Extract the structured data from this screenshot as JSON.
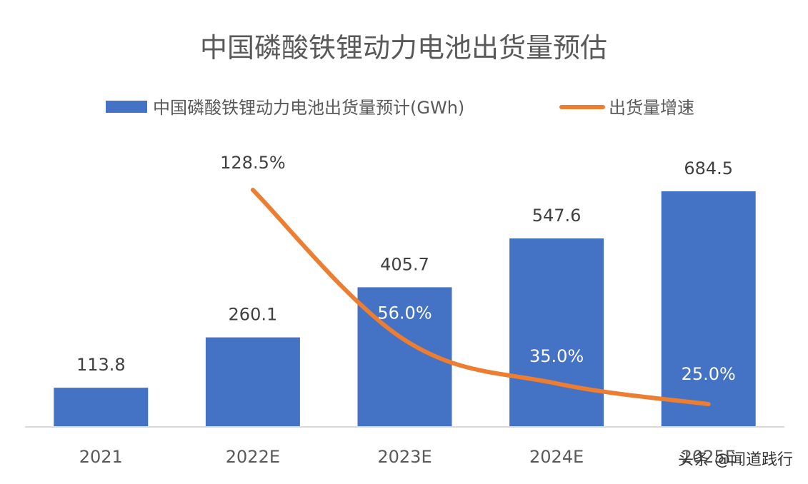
{
  "chart_data": {
    "type": "bar",
    "title": "中国磷酸铁锂动力电池出货量预估",
    "categories": [
      "2021",
      "2022E",
      "2023E",
      "2024E",
      "2025E"
    ],
    "series": [
      {
        "name": "中国磷酸铁锂动力电池出货量预计(GWh)",
        "type": "bar",
        "values": [
          113.8,
          260.1,
          405.7,
          547.6,
          684.5
        ],
        "labels": [
          "113.8",
          "260.1",
          "405.7",
          "547.6",
          "684.5"
        ],
        "color": "#4472C4"
      },
      {
        "name": "出货量增速",
        "type": "line",
        "values": [
          null,
          128.5,
          56.0,
          35.0,
          25.0
        ],
        "labels": [
          "",
          "128.5%",
          "56.0%",
          "35.0%",
          "25.0%"
        ],
        "unit": "%",
        "color": "#ED7D31"
      }
    ],
    "legend_position": "top",
    "grid": false
  },
  "watermark": {
    "text": "头条 @闻道践行"
  }
}
